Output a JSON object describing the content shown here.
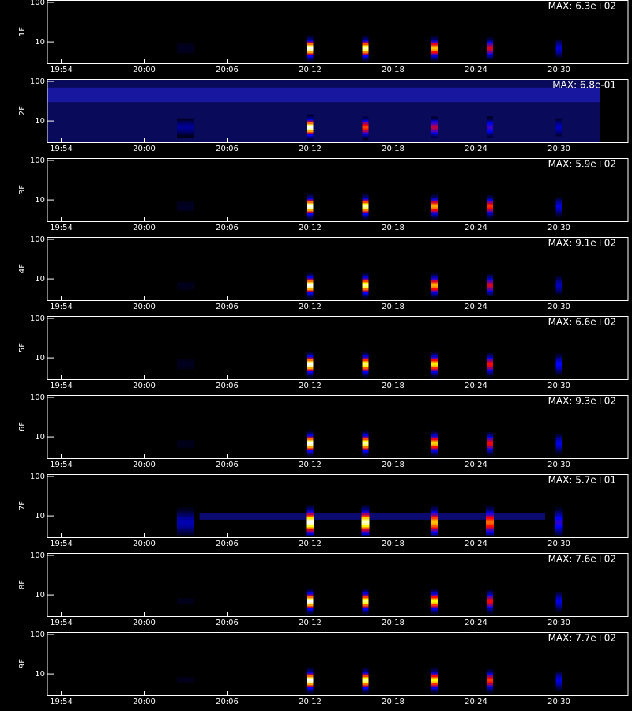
{
  "chart_data": [
    {
      "type": "heatmap",
      "ylabel": "1F",
      "annotation": "MAX: 6.3e+02",
      "x": [
        "20:03",
        "20:12",
        "20:16",
        "20:21",
        "20:25",
        "20:30"
      ],
      "values": [
        40,
        630,
        600,
        500,
        350,
        150
      ],
      "xlim": [
        "19:53",
        "20:35"
      ],
      "xticks": [
        "19:54",
        "20:00",
        "20:06",
        "20:12",
        "20:18",
        "20:24",
        "20:30"
      ],
      "ylim": [
        2.9,
        115
      ],
      "yticks": [
        10,
        100
      ],
      "log_y": true
    },
    {
      "type": "heatmap",
      "ylabel": "2F",
      "annotation": "MAX: 6.8e-01",
      "x": [
        "20:03",
        "20:12",
        "20:16",
        "20:21",
        "20:25",
        "20:30"
      ],
      "values": [
        0.2,
        0.68,
        0.45,
        0.35,
        0.25,
        0.15
      ],
      "xlim": [
        "19:53",
        "20:35"
      ],
      "xticks": [
        "19:54",
        "20:00",
        "20:06",
        "20:12",
        "20:18",
        "20:24",
        "20:30"
      ],
      "ylim": [
        2.9,
        115
      ],
      "yticks": [
        10,
        100
      ],
      "log_y": true
    },
    {
      "type": "heatmap",
      "ylabel": "3F",
      "annotation": "MAX: 5.9e+02",
      "x": [
        "20:03",
        "20:12",
        "20:16",
        "20:21",
        "20:25",
        "20:30"
      ],
      "values": [
        40,
        590,
        560,
        450,
        380,
        150
      ],
      "xlim": [
        "19:53",
        "20:35"
      ],
      "xticks": [
        "19:54",
        "20:00",
        "20:06",
        "20:12",
        "20:18",
        "20:24",
        "20:30"
      ],
      "ylim": [
        2.9,
        115
      ],
      "yticks": [
        10,
        100
      ],
      "log_y": true
    },
    {
      "type": "heatmap",
      "ylabel": "4F",
      "annotation": "MAX: 9.1e+02",
      "x": [
        "20:03",
        "20:12",
        "20:16",
        "20:21",
        "20:25",
        "20:30"
      ],
      "values": [
        50,
        910,
        850,
        700,
        500,
        200
      ],
      "xlim": [
        "19:53",
        "20:35"
      ],
      "xticks": [
        "19:54",
        "20:00",
        "20:06",
        "20:12",
        "20:18",
        "20:24",
        "20:30"
      ],
      "ylim": [
        2.9,
        115
      ],
      "yticks": [
        10,
        100
      ],
      "log_y": true
    },
    {
      "type": "heatmap",
      "ylabel": "5F",
      "annotation": "MAX: 6.6e+02",
      "x": [
        "20:03",
        "20:12",
        "20:16",
        "20:21",
        "20:25",
        "20:30"
      ],
      "values": [
        40,
        660,
        600,
        550,
        400,
        200
      ],
      "xlim": [
        "19:53",
        "20:35"
      ],
      "xticks": [
        "19:54",
        "20:00",
        "20:06",
        "20:12",
        "20:18",
        "20:24",
        "20:30"
      ],
      "ylim": [
        2.9,
        115
      ],
      "yticks": [
        10,
        100
      ],
      "log_y": true
    },
    {
      "type": "heatmap",
      "ylabel": "6F",
      "annotation": "MAX: 9.3e+02",
      "x": [
        "20:03",
        "20:12",
        "20:16",
        "20:21",
        "20:25",
        "20:30"
      ],
      "values": [
        50,
        930,
        880,
        750,
        550,
        250
      ],
      "xlim": [
        "19:53",
        "20:35"
      ],
      "xticks": [
        "19:54",
        "20:00",
        "20:06",
        "20:12",
        "20:18",
        "20:24",
        "20:30"
      ],
      "ylim": [
        2.9,
        115
      ],
      "yticks": [
        10,
        100
      ],
      "log_y": true
    },
    {
      "type": "heatmap",
      "ylabel": "7F",
      "annotation": "MAX: 5.7e+01",
      "x": [
        "20:03",
        "20:12",
        "20:16",
        "20:21",
        "20:25",
        "20:30"
      ],
      "values": [
        20,
        57,
        55,
        45,
        40,
        20
      ],
      "xlim": [
        "19:53",
        "20:35"
      ],
      "xticks": [
        "19:54",
        "20:00",
        "20:06",
        "20:12",
        "20:18",
        "20:24",
        "20:30"
      ],
      "ylim": [
        2.9,
        115
      ],
      "yticks": [
        10,
        100
      ],
      "log_y": true
    },
    {
      "type": "heatmap",
      "ylabel": "8F",
      "annotation": "MAX: 7.6e+02",
      "x": [
        "20:03",
        "20:12",
        "20:16",
        "20:21",
        "20:25",
        "20:30"
      ],
      "values": [
        40,
        760,
        700,
        650,
        450,
        200
      ],
      "xlim": [
        "19:53",
        "20:35"
      ],
      "xticks": [
        "19:54",
        "20:00",
        "20:06",
        "20:12",
        "20:18",
        "20:24",
        "20:30"
      ],
      "ylim": [
        2.9,
        115
      ],
      "yticks": [
        10,
        100
      ],
      "log_y": true
    },
    {
      "type": "heatmap",
      "ylabel": "9F",
      "annotation": "MAX: 7.7e+02",
      "x": [
        "20:03",
        "20:12",
        "20:16",
        "20:21",
        "20:25",
        "20:30"
      ],
      "values": [
        40,
        770,
        720,
        650,
        500,
        200
      ],
      "xlim": [
        "19:53",
        "20:35"
      ],
      "xticks": [
        "19:54",
        "20:00",
        "20:06",
        "20:12",
        "20:18",
        "20:24",
        "20:30"
      ],
      "ylim": [
        2.9,
        115
      ],
      "yticks": [
        10,
        100
      ],
      "log_y": true
    }
  ]
}
